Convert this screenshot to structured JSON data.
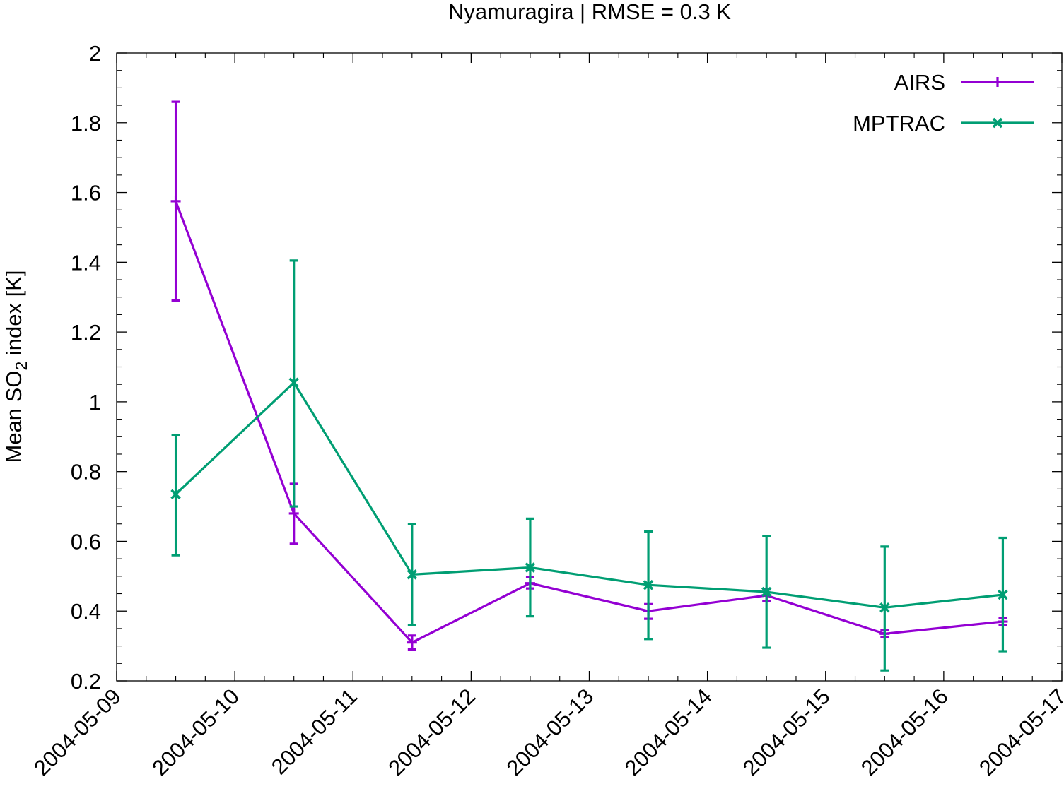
{
  "chart_data": {
    "type": "line",
    "title": "Nyamuragira | RMSE = 0.3 K",
    "ylabel": {
      "prefix": "Mean SO",
      "subscript": "2",
      "suffix": " index [K]"
    },
    "xlabel": "",
    "xlim": [
      "2004-05-09",
      "2004-05-17"
    ],
    "ylim": [
      0.2,
      2.0
    ],
    "x_ticks": [
      "2004-05-09",
      "2004-05-10",
      "2004-05-11",
      "2004-05-12",
      "2004-05-13",
      "2004-05-14",
      "2004-05-15",
      "2004-05-16",
      "2004-05-17"
    ],
    "y_ticks": [
      "0.2",
      "0.4",
      "0.6",
      "0.8",
      "1",
      "1.2",
      "1.4",
      "1.6",
      "1.8",
      "2"
    ],
    "grid": false,
    "legend_position": "top-right",
    "x": [
      "2004-05-09 12:00",
      "2004-05-10 12:00",
      "2004-05-11 12:00",
      "2004-05-12 12:00",
      "2004-05-13 12:00",
      "2004-05-14 12:00",
      "2004-05-15 12:00",
      "2004-05-16 12:00"
    ],
    "series": [
      {
        "name": "AIRS",
        "color": "#9400d3",
        "marker": "plus",
        "values": [
          1.575,
          0.68,
          0.31,
          0.48,
          0.4,
          0.445,
          0.335,
          0.37
        ],
        "err_low": [
          1.29,
          0.593,
          0.29,
          0.465,
          0.378,
          0.428,
          0.325,
          0.36
        ],
        "err_high": [
          1.86,
          0.765,
          0.33,
          0.498,
          0.42,
          0.462,
          0.345,
          0.38
        ]
      },
      {
        "name": "MPTRAC",
        "color": "#009e73",
        "marker": "cross",
        "values": [
          0.735,
          1.055,
          0.505,
          0.525,
          0.475,
          0.455,
          0.41,
          0.447
        ],
        "err_low": [
          0.56,
          0.7,
          0.36,
          0.385,
          0.32,
          0.295,
          0.23,
          0.285
        ],
        "err_high": [
          0.905,
          1.405,
          0.65,
          0.665,
          0.628,
          0.615,
          0.585,
          0.61
        ]
      }
    ]
  }
}
